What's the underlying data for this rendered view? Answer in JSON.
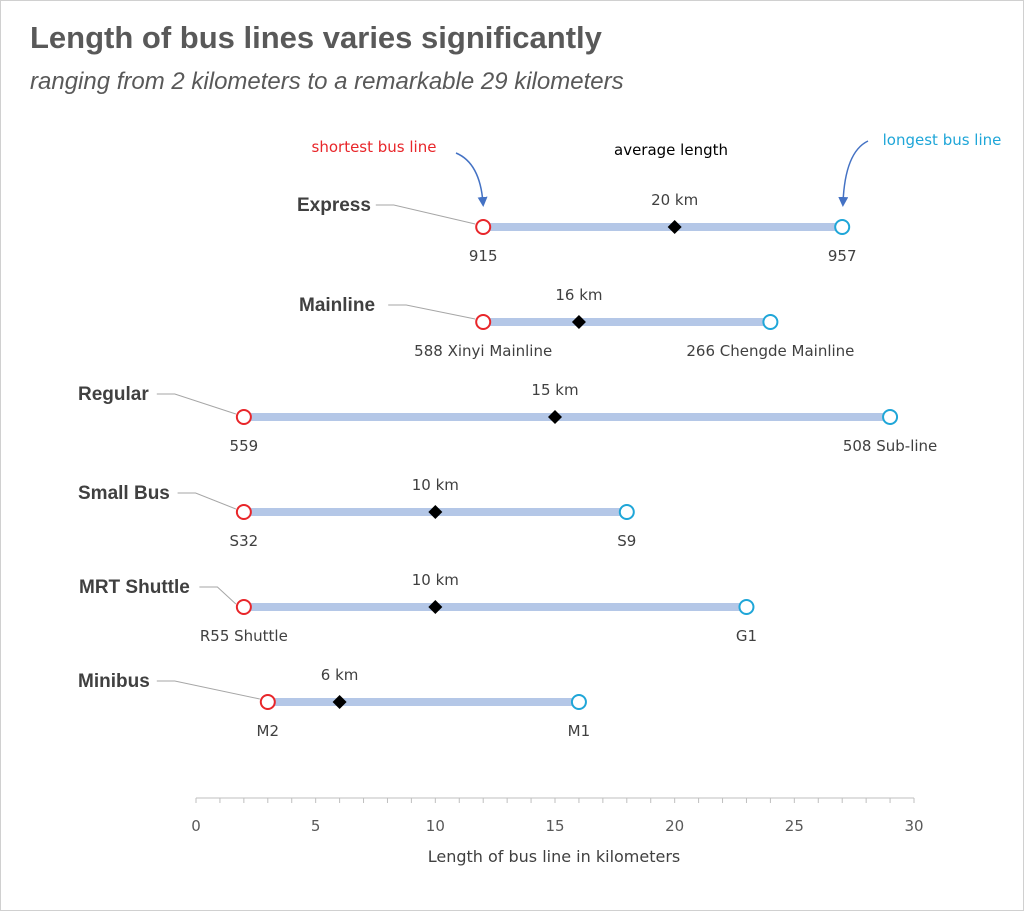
{
  "title": "Length of bus lines varies significantly",
  "subtitle": "ranging from 2 kilometers to a remarkable 29 kilometers",
  "colors": {
    "min_marker": "#e8262a",
    "max_marker": "#1fa6d8",
    "range_bar": "#b4c7e7",
    "avg_marker": "#000000",
    "arrow": "#4472c4",
    "min_annotation": "#e8262a",
    "max_annotation": "#1fa6d8",
    "avg_annotation": "#000000"
  },
  "annotations": {
    "min": "shortest bus line",
    "avg": "average length",
    "max": "longest bus line"
  },
  "chart_data": {
    "type": "dot-range",
    "xlabel": "Length of bus line in kilometers",
    "xlim": [
      0,
      30
    ],
    "xticks": [
      0,
      5,
      10,
      15,
      20,
      25,
      30
    ],
    "grid": false,
    "series": [
      {
        "category": "Express",
        "min": 12,
        "min_label": "915",
        "avg": 20,
        "avg_label": "20 km",
        "max": 27,
        "max_label": "957"
      },
      {
        "category": "Mainline",
        "min": 12,
        "min_label": "588 Xinyi Mainline",
        "avg": 16,
        "avg_label": "16 km",
        "max": 24,
        "max_label": "266 Chengde Mainline"
      },
      {
        "category": "Regular",
        "min": 2,
        "min_label": "559",
        "avg": 15,
        "avg_label": "15 km",
        "max": 29,
        "max_label": "508 Sub-line"
      },
      {
        "category": "Small Bus",
        "min": 2,
        "min_label": "S32",
        "avg": 10,
        "avg_label": "10 km",
        "max": 18,
        "max_label": "S9"
      },
      {
        "category": "MRT Shuttle",
        "min": 2,
        "min_label": "R55 Shuttle",
        "avg": 10,
        "avg_label": "10 km",
        "max": 23,
        "max_label": "G1"
      },
      {
        "category": "Minibus",
        "min": 3,
        "min_label": "M2",
        "avg": 6,
        "avg_label": "6 km",
        "max": 16,
        "max_label": "M1"
      }
    ]
  }
}
